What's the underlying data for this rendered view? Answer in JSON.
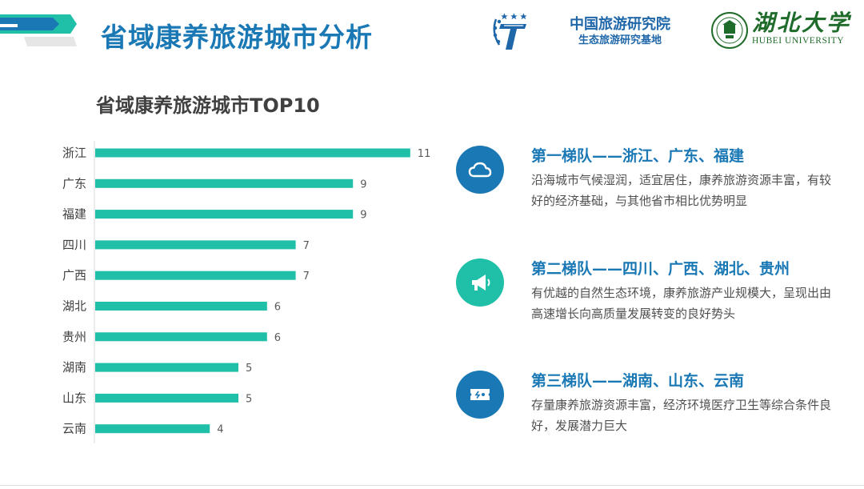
{
  "header": {
    "title": "省域康养旅游城市分析",
    "institute_name": "中国旅游研究院",
    "institute_sub": "生态旅游研究基地",
    "university_cn": "湖北大学",
    "university_en": "HUBEI UNIVERSITY"
  },
  "colors": {
    "title_blue": "#1a78b5",
    "bar_teal": "#1fbfa8",
    "icon_blue": "#1a78b5",
    "icon_teal": "#1fbfa8"
  },
  "chart_data": {
    "type": "bar",
    "orientation": "horizontal",
    "title": "省域康养旅游城市TOP10",
    "categories": [
      "浙江",
      "广东",
      "福建",
      "四川",
      "广西",
      "湖北",
      "贵州",
      "湖南",
      "山东",
      "云南"
    ],
    "values": [
      11,
      9,
      9,
      7,
      7,
      6,
      6,
      5,
      5,
      4
    ],
    "data_labels": true,
    "grid": false,
    "xlim": [
      0,
      11
    ]
  },
  "tiers": [
    {
      "heading": "第一梯队——浙江、广东、福建",
      "desc": "沿海城市气候湿润，适宜居住，康养旅游资源丰富，有较好的经济基础，与其他省市相比优势明显",
      "icon": "cloud-icon"
    },
    {
      "heading": "第二梯队——四川、广西、湖北、贵州",
      "desc": "有优越的自然生态环境，康养旅游产业规模大，呈现出由高速增长向高质量发展转变的良好势头",
      "icon": "megaphone-icon"
    },
    {
      "heading": "第三梯队——湖南、山东、云南",
      "desc": "存量康养旅游资源丰富，经济环境医疗卫生等综合条件良好，发展潜力巨大",
      "icon": "ticket-icon"
    }
  ]
}
